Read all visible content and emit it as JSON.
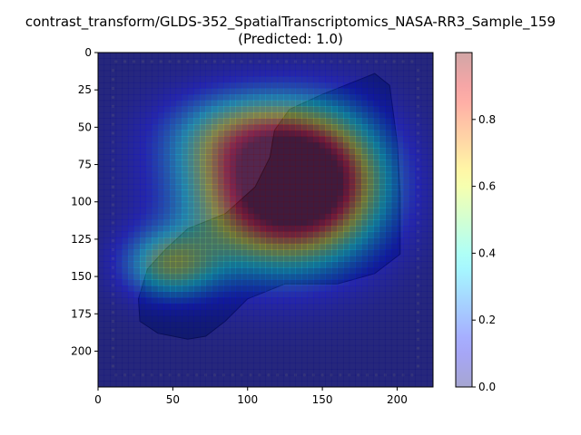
{
  "chart_data": {
    "type": "heatmap",
    "title": "contrast_transform/GLDS-352_SpatialTranscriptomics_NASA-RR3_Sample_159",
    "subtitle": "(Predicted: 1.0)",
    "xlabel": "",
    "ylabel": "",
    "xlim": [
      0,
      224
    ],
    "ylim": [
      224,
      0
    ],
    "x_ticks": [
      0,
      50,
      100,
      150,
      200
    ],
    "x_tick_labels": [
      "0",
      "50",
      "100",
      "150",
      "200"
    ],
    "y_ticks": [
      0,
      25,
      50,
      75,
      100,
      125,
      150,
      175,
      200
    ],
    "y_tick_labels": [
      "0",
      "25",
      "50",
      "75",
      "100",
      "125",
      "150",
      "175",
      "200"
    ],
    "grid": false,
    "colorbar": {
      "colormap": "jet",
      "alpha": 0.35,
      "range": [
        0,
        1
      ],
      "ticks": [
        0.0,
        0.2,
        0.4,
        0.6,
        0.8
      ],
      "tick_labels": [
        "0.0",
        "0.2",
        "0.4",
        "0.6",
        "0.8"
      ]
    },
    "heat_peaks": [
      {
        "x": 120,
        "y": 95,
        "sx": 42,
        "sy": 34,
        "amp": 1.0
      },
      {
        "x": 150,
        "y": 80,
        "sx": 30,
        "sy": 30,
        "amp": 0.45
      },
      {
        "x": 48,
        "y": 142,
        "sx": 22,
        "sy": 16,
        "amp": 0.5
      },
      {
        "x": 95,
        "y": 55,
        "sx": 35,
        "sy": 20,
        "amp": 0.35
      }
    ],
    "tissue_outline": [
      [
        45,
        132
      ],
      [
        60,
        118
      ],
      [
        85,
        108
      ],
      [
        105,
        90
      ],
      [
        115,
        70
      ],
      [
        118,
        52
      ],
      [
        128,
        38
      ],
      [
        150,
        28
      ],
      [
        175,
        18
      ],
      [
        185,
        14
      ],
      [
        195,
        22
      ],
      [
        200,
        60
      ],
      [
        202,
        95
      ],
      [
        202,
        135
      ],
      [
        185,
        148
      ],
      [
        160,
        155
      ],
      [
        125,
        155
      ],
      [
        100,
        165
      ],
      [
        85,
        180
      ],
      [
        72,
        190
      ],
      [
        60,
        192
      ],
      [
        40,
        188
      ],
      [
        28,
        180
      ],
      [
        27,
        165
      ],
      [
        33,
        145
      ]
    ],
    "bg_color": "#3b3d7a",
    "tissue_color": "#1c2a5e"
  }
}
